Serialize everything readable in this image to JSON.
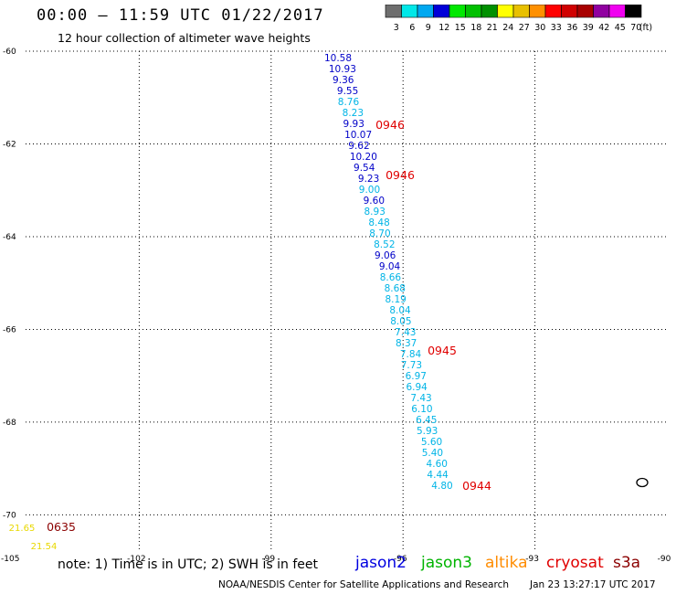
{
  "header": {
    "title": "00:00 – 11:59 UTC 01/22/2017",
    "subtitle": "12 hour collection of altimeter wave heights"
  },
  "legend": {
    "colors": [
      "#6e6e6e",
      "#00e8e8",
      "#00a8f0",
      "#0000d8",
      "#00e800",
      "#00c000",
      "#009000",
      "#ffff00",
      "#e8c000",
      "#ff9000",
      "#ff0000",
      "#d00000",
      "#a80000",
      "#9000a0",
      "#f000f0",
      "#000000"
    ],
    "labels": [
      "3",
      "6",
      "9",
      "12",
      "15",
      "18",
      "21",
      "24",
      "27",
      "30",
      "33",
      "36",
      "39",
      "42",
      "45",
      "70",
      "(ft)"
    ]
  },
  "map": {
    "lon_ticks": [
      "-105",
      "-102",
      "-99",
      "-96",
      "-93",
      "-90"
    ],
    "lat_ticks": [
      "-60",
      "-62",
      "-64",
      "-66",
      "-68",
      "-70"
    ],
    "lon_range": [
      -105,
      -90
    ],
    "lat_range": [
      -60,
      -70.8
    ],
    "grid": "dotted"
  },
  "swh_colors": {
    "jason2": "#0000c8",
    "jason3": "#00b400",
    "altika": "#ff8c00",
    "cryosat": "#e00000",
    "s3a": "#00b4e6",
    "yellow": "#e8d800",
    "dark_red": "#8b0000"
  },
  "track_labels": [
    {
      "value": "10.58",
      "color": "jason2"
    },
    {
      "value": "10.93",
      "color": "jason2"
    },
    {
      "value": "9.36",
      "color": "jason2"
    },
    {
      "value": "9.55",
      "color": "jason2"
    },
    {
      "value": "8.76",
      "color": "s3a"
    },
    {
      "value": "8.23",
      "color": "s3a"
    },
    {
      "value": "9.93",
      "color": "jason2"
    },
    {
      "value": "10.07",
      "color": "jason2"
    },
    {
      "value": "9.62",
      "color": "jason2"
    },
    {
      "value": "10.20",
      "color": "jason2"
    },
    {
      "value": "9.54",
      "color": "jason2"
    },
    {
      "value": "9.23",
      "color": "jason2"
    },
    {
      "value": "9.00",
      "color": "s3a"
    },
    {
      "value": "9.60",
      "color": "jason2"
    },
    {
      "value": "8.93",
      "color": "s3a"
    },
    {
      "value": "8.48",
      "color": "s3a"
    },
    {
      "value": "8.70",
      "color": "s3a"
    },
    {
      "value": "8.52",
      "color": "s3a"
    },
    {
      "value": "9.06",
      "color": "jason2"
    },
    {
      "value": "9.04",
      "color": "jason2"
    },
    {
      "value": "8.66",
      "color": "s3a"
    },
    {
      "value": "8.68",
      "color": "s3a"
    },
    {
      "value": "8.19",
      "color": "s3a"
    },
    {
      "value": "8.04",
      "color": "s3a"
    },
    {
      "value": "8.05",
      "color": "s3a"
    },
    {
      "value": "7.43",
      "color": "s3a"
    },
    {
      "value": "8.37",
      "color": "s3a"
    },
    {
      "value": "7.84",
      "color": "s3a"
    },
    {
      "value": "7.73",
      "color": "s3a"
    },
    {
      "value": "6.97",
      "color": "s3a"
    },
    {
      "value": "6.94",
      "color": "s3a"
    },
    {
      "value": "7.43",
      "color": "s3a"
    },
    {
      "value": "6.10",
      "color": "s3a"
    },
    {
      "value": "6.45",
      "color": "s3a"
    },
    {
      "value": "5.93",
      "color": "s3a"
    },
    {
      "value": "5.60",
      "color": "s3a"
    },
    {
      "value": "5.40",
      "color": "s3a"
    },
    {
      "value": "4.60",
      "color": "s3a"
    },
    {
      "value": "4.44",
      "color": "s3a"
    },
    {
      "value": "4.80",
      "color": "s3a"
    }
  ],
  "time_labels": [
    {
      "value": "0946",
      "color": "cryosat"
    },
    {
      "value": "0946",
      "color": "cryosat"
    },
    {
      "value": "0945",
      "color": "cryosat"
    },
    {
      "value": "0944",
      "color": "cryosat"
    },
    {
      "value": "0635",
      "color": "dark_red"
    }
  ],
  "corner_labels": [
    {
      "value": "21.65",
      "color": "yellow"
    },
    {
      "value": "21.54",
      "color": "yellow"
    }
  ],
  "footer": {
    "note": "note: 1) Time is in UTC; 2) SWH is in feet",
    "satellites": [
      {
        "name": "jason2",
        "color": "#0000e0"
      },
      {
        "name": "jason3",
        "color": "#00b400"
      },
      {
        "name": "altika",
        "color": "#ff8c00"
      },
      {
        "name": "cryosat",
        "color": "#e00000"
      },
      {
        "name": "s3a",
        "color": "#8b0000"
      }
    ],
    "credit": "NOAA/NESDIS Center for Satellite Applications and Research",
    "timestamp": "Jan 23 13:27:17 UTC 2017"
  }
}
